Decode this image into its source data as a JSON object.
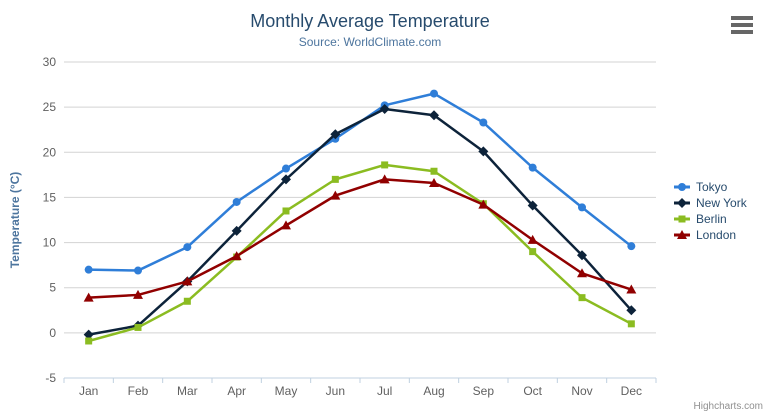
{
  "header": {
    "title": "Monthly Average Temperature",
    "subtitle": "Source: WorldClimate.com"
  },
  "icons": {
    "context_menu": "hamburger"
  },
  "credits": {
    "label": "Highcharts.com"
  },
  "colors": {
    "title": "#274b6d",
    "subtitle": "#4d759e",
    "axis_title": "#4d759e",
    "tick_label": "#606060",
    "gridline": "#d3d3d3",
    "axis_line": "#c0d0e0",
    "legend_text": "#274b6d",
    "credit_text": "#909090"
  },
  "chart_data": {
    "type": "line",
    "title": "Monthly Average Temperature",
    "subtitle": "Source: WorldClimate.com",
    "categories": [
      "Jan",
      "Feb",
      "Mar",
      "Apr",
      "May",
      "Jun",
      "Jul",
      "Aug",
      "Sep",
      "Oct",
      "Nov",
      "Dec"
    ],
    "xlabel": "",
    "ylabel": "Temperature (°C)",
    "ylim": [
      -5,
      30
    ],
    "ytick_step": 5,
    "grid": "horizontal",
    "legend_position": "right",
    "series": [
      {
        "name": "Tokyo",
        "color": "#2f7ed8",
        "marker": "circle",
        "values": [
          7.0,
          6.9,
          9.5,
          14.5,
          18.2,
          21.5,
          25.2,
          26.5,
          23.3,
          18.3,
          13.9,
          9.6
        ]
      },
      {
        "name": "New York",
        "color": "#0d233a",
        "marker": "diamond",
        "values": [
          -0.2,
          0.8,
          5.7,
          11.3,
          17.0,
          22.0,
          24.8,
          24.1,
          20.1,
          14.1,
          8.6,
          2.5
        ]
      },
      {
        "name": "Berlin",
        "color": "#8bbc21",
        "marker": "square",
        "values": [
          -0.9,
          0.6,
          3.5,
          8.4,
          13.5,
          17.0,
          18.6,
          17.9,
          14.3,
          9.0,
          3.9,
          1.0
        ]
      },
      {
        "name": "London",
        "color": "#910000",
        "marker": "triangle",
        "values": [
          3.9,
          4.2,
          5.7,
          8.5,
          11.9,
          15.2,
          17.0,
          16.6,
          14.2,
          10.3,
          6.6,
          4.8
        ]
      }
    ]
  }
}
